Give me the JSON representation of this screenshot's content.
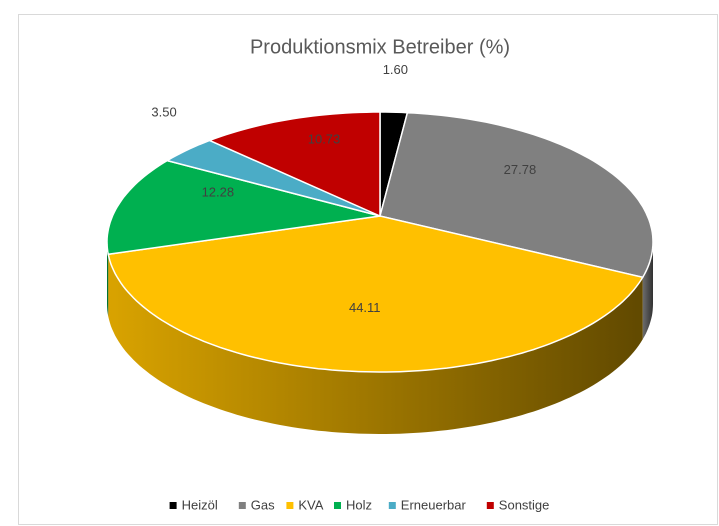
{
  "chart_data": {
    "type": "pie3d",
    "title": "Produktionsmix  Betreiber (%)",
    "categories": [
      "Heizöl",
      "Gas",
      "KVA",
      "Holz",
      "Erneuerbar",
      "Sonstige"
    ],
    "values": [
      1.6,
      27.78,
      44.11,
      12.28,
      3.5,
      10.73
    ],
    "value_labels": [
      "1.60",
      "27.78",
      "44.11",
      "12.28",
      "3.50",
      "10.73"
    ],
    "colors": [
      "#000000",
      "#808080",
      "#ffc000",
      "#00b050",
      "#4bacc6",
      "#c00000"
    ],
    "legend": "bottom"
  }
}
